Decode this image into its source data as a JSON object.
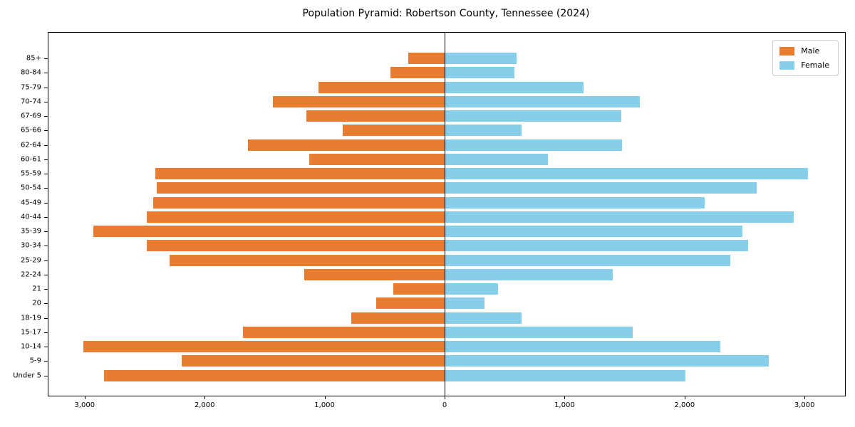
{
  "chart_data": {
    "type": "bar",
    "subtype": "population-pyramid",
    "orientation": "horizontal-diverging",
    "title": "Population Pyramid: Robertson County, Tennessee (2024)",
    "categories_top_to_bottom": [
      "85+",
      "80-84",
      "75-79",
      "70-74",
      "67-69",
      "65-66",
      "62-64",
      "60-61",
      "55-59",
      "50-54",
      "45-49",
      "40-44",
      "35-39",
      "30-34",
      "25-29",
      "22-24",
      "21",
      "20",
      "18-19",
      "15-17",
      "10-14",
      "5-9",
      "Under 5"
    ],
    "series": [
      {
        "name": "Male",
        "side": "left",
        "color": "#E87C30",
        "values": [
          300,
          450,
          1050,
          1430,
          1150,
          850,
          1640,
          1130,
          2410,
          2400,
          2430,
          2480,
          2930,
          2480,
          2290,
          1170,
          430,
          570,
          780,
          1680,
          3010,
          2190,
          2840
        ]
      },
      {
        "name": "Female",
        "side": "right",
        "color": "#87CEEB",
        "values": [
          600,
          580,
          1160,
          1630,
          1470,
          640,
          1480,
          860,
          3030,
          2600,
          2170,
          2910,
          2480,
          2530,
          2380,
          1400,
          445,
          335,
          640,
          1570,
          2300,
          2700,
          2010
        ]
      }
    ],
    "x_axis": {
      "tick_values": [
        -3000,
        -2000,
        -1000,
        0,
        1000,
        2000,
        3000
      ],
      "tick_labels": [
        "3,000",
        "2,000",
        "1,000",
        "0",
        "1,000",
        "2,000",
        "3,000"
      ],
      "xlim": [
        -3320,
        3320
      ],
      "grid": false
    },
    "legend": {
      "position": "upper-right",
      "entries": [
        "Male",
        "Female"
      ]
    },
    "colors": {
      "male": "#E87C30",
      "female": "#87CEEB",
      "axis": "#000000",
      "background": "#ffffff",
      "legend_border": "#cccccc"
    }
  }
}
